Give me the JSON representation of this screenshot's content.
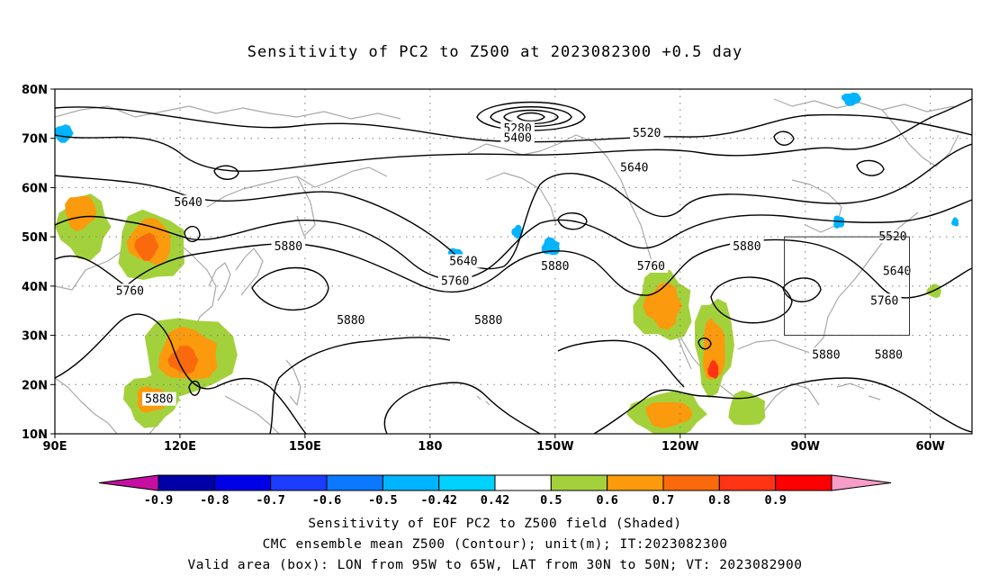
{
  "title": "Sensitivity of PC2 to Z500 at 2023082300 +0.5 day",
  "map": {
    "lon_range": [
      90,
      310
    ],
    "lat_range": [
      10,
      80
    ],
    "lat_ticks": [
      {
        "value": 80,
        "label": "80N"
      },
      {
        "value": 70,
        "label": "70N"
      },
      {
        "value": 60,
        "label": "60N"
      },
      {
        "value": 50,
        "label": "50N"
      },
      {
        "value": 40,
        "label": "40N"
      },
      {
        "value": 30,
        "label": "30N"
      },
      {
        "value": 20,
        "label": "20N"
      },
      {
        "value": 10,
        "label": "10N"
      }
    ],
    "lon_ticks": [
      {
        "value": 90,
        "label": "90E"
      },
      {
        "value": 120,
        "label": "120E"
      },
      {
        "value": 150,
        "label": "150E"
      },
      {
        "value": 180,
        "label": "180"
      },
      {
        "value": 210,
        "label": "150W"
      },
      {
        "value": 240,
        "label": "120W"
      },
      {
        "value": 270,
        "label": "90W"
      },
      {
        "value": 300,
        "label": "60W"
      }
    ],
    "valid_box": {
      "lon": [
        265,
        295
      ],
      "lat": [
        30,
        50
      ]
    },
    "contour_labels": [
      {
        "text": "5280",
        "lon": 201,
        "lat": 72
      },
      {
        "text": "5400",
        "lon": 201,
        "lat": 70
      },
      {
        "text": "5520",
        "lon": 232,
        "lat": 71
      },
      {
        "text": "5640",
        "lon": 229,
        "lat": 64
      },
      {
        "text": "5640",
        "lon": 122,
        "lat": 57
      },
      {
        "text": "5640",
        "lon": 188,
        "lat": 45
      },
      {
        "text": "5760",
        "lon": 186,
        "lat": 41
      },
      {
        "text": "5760",
        "lon": 108,
        "lat": 39
      },
      {
        "text": "5760",
        "lon": 233,
        "lat": 44
      },
      {
        "text": "5880",
        "lon": 146,
        "lat": 48
      },
      {
        "text": "5880",
        "lon": 210,
        "lat": 44
      },
      {
        "text": "5880",
        "lon": 256,
        "lat": 48
      },
      {
        "text": "5880",
        "lon": 161,
        "lat": 33
      },
      {
        "text": "5880",
        "lon": 194,
        "lat": 33
      },
      {
        "text": "5880",
        "lon": 115,
        "lat": 17
      },
      {
        "text": "5880",
        "lon": 275,
        "lat": 26
      },
      {
        "text": "5880",
        "lon": 290,
        "lat": 26
      },
      {
        "text": "5520",
        "lon": 291,
        "lat": 50
      },
      {
        "text": "5640",
        "lon": 292,
        "lat": 43
      },
      {
        "text": "5760",
        "lon": 289,
        "lat": 37
      }
    ],
    "shaded_regions": [
      {
        "level": 0.5,
        "lon": 97,
        "lat": 52,
        "rlon": 7,
        "rlat": 7
      },
      {
        "level": 0.6,
        "lon": 96,
        "lat": 55,
        "rlon": 4,
        "rlat": 4
      },
      {
        "level": 0.5,
        "lon": 113,
        "lat": 48,
        "rlon": 9,
        "rlat": 8
      },
      {
        "level": 0.6,
        "lon": 113,
        "lat": 49,
        "rlon": 6,
        "rlat": 5
      },
      {
        "level": 0.7,
        "lon": 112,
        "lat": 48,
        "rlon": 3,
        "rlat": 3
      },
      {
        "level": 0.5,
        "lon": 122,
        "lat": 26,
        "rlon": 12,
        "rlat": 9
      },
      {
        "level": 0.6,
        "lon": 122,
        "lat": 26,
        "rlon": 8,
        "rlat": 6
      },
      {
        "level": 0.7,
        "lon": 121,
        "lat": 25,
        "rlon": 4,
        "rlat": 3
      },
      {
        "level": 0.5,
        "lon": 113,
        "lat": 17,
        "rlon": 7,
        "rlat": 6
      },
      {
        "level": 0.6,
        "lon": 113,
        "lat": 17,
        "rlon": 4,
        "rlat": 3
      },
      {
        "level": 0.5,
        "lon": 236,
        "lat": 36,
        "rlon": 8,
        "rlat": 8
      },
      {
        "level": 0.6,
        "lon": 236,
        "lat": 36,
        "rlon": 5,
        "rlat": 5
      },
      {
        "level": 0.5,
        "lon": 248,
        "lat": 28,
        "rlon": 5,
        "rlat": 11
      },
      {
        "level": 0.6,
        "lon": 248,
        "lat": 27,
        "rlon": 3,
        "rlat": 7
      },
      {
        "level": 0.8,
        "lon": 248,
        "lat": 23,
        "rlon": 1.5,
        "rlat": 2
      },
      {
        "level": 0.5,
        "lon": 237,
        "lat": 14,
        "rlon": 10,
        "rlat": 5
      },
      {
        "level": 0.6,
        "lon": 237,
        "lat": 14,
        "rlon": 6,
        "rlat": 3
      },
      {
        "level": 0.5,
        "lon": 256,
        "lat": 15,
        "rlon": 5,
        "rlat": 4
      },
      {
        "level": 0.5,
        "lon": 301,
        "lat": 39,
        "rlon": 2,
        "rlat": 1.5
      },
      {
        "level": -0.5,
        "lon": 92,
        "lat": 71,
        "rlon": 2.5,
        "rlat": 2
      },
      {
        "level": -0.5,
        "lon": 186,
        "lat": 46,
        "rlon": 2,
        "rlat": 2
      },
      {
        "level": -0.5,
        "lon": 209,
        "lat": 48,
        "rlon": 2.5,
        "rlat": 2
      },
      {
        "level": -0.5,
        "lon": 201,
        "lat": 51,
        "rlon": 1.5,
        "rlat": 1.5
      },
      {
        "level": -0.5,
        "lon": 281,
        "lat": 78,
        "rlon": 2.5,
        "rlat": 1.5
      },
      {
        "level": -0.5,
        "lon": 278,
        "lat": 53,
        "rlon": 1.5,
        "rlat": 1.5
      },
      {
        "level": -0.5,
        "lon": 306,
        "lat": 53,
        "rlon": 1,
        "rlat": 1
      }
    ]
  },
  "colorbar": {
    "bins": [
      {
        "color": "#c70ea3",
        "label": "-0.9"
      },
      {
        "color": "#0000a8",
        "label": "-0.8"
      },
      {
        "color": "#0000e6",
        "label": "-0.7"
      },
      {
        "color": "#1c3cff",
        "label": "-0.6"
      },
      {
        "color": "#0a79ff",
        "label": "-0.5"
      },
      {
        "color": "#00b4ff",
        "label": "-0.42"
      },
      {
        "color": "#00d2ff",
        "label": "0.42"
      },
      {
        "color": "#ffffff",
        "label": "0.5"
      },
      {
        "color": "#a3d13c",
        "label": "0.6"
      },
      {
        "color": "#fa9a0c",
        "label": "0.7"
      },
      {
        "color": "#fa6a0c",
        "label": "0.8"
      },
      {
        "color": "#ff3415",
        "label": "0.9"
      },
      {
        "color": "#ff0000",
        "label": ""
      },
      {
        "color": "#f89cc8",
        "label": ""
      }
    ]
  },
  "captions": [
    "Sensitivity of EOF PC2 to Z500 field (Shaded)",
    "CMC ensemble mean Z500 (Contour); unit(m); IT:2023082300",
    "Valid area (box): LON from 95W to 65W, LAT from 30N to 50N; VT: 2023082900"
  ]
}
